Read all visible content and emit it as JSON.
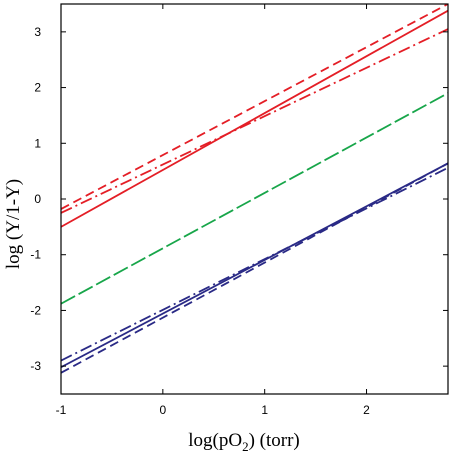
{
  "chart_data": {
    "type": "line",
    "title": "",
    "xlabel": {
      "prefix": "log(pO",
      "subscript": "2",
      "suffix": ") (torr)"
    },
    "ylabel": "log (Y/1-Y)",
    "xlim": [
      -1,
      2.8
    ],
    "ylim": [
      -3.5,
      3.5
    ],
    "x_ticks": [
      -1,
      0,
      1,
      2
    ],
    "x_tick_labels": [
      "-1",
      "0",
      "1",
      "2"
    ],
    "y_ticks": [
      -3,
      -2,
      -1,
      0,
      1,
      2,
      3
    ],
    "y_tick_labels": [
      "-3",
      "-2",
      "-1",
      "0",
      "1",
      "2",
      "3"
    ],
    "grid": false,
    "legend": "none",
    "series": [
      {
        "color": "#e41e26",
        "dash": "solid",
        "x": [
          -1,
          2.8
        ],
        "y": [
          -0.5,
          3.38
        ]
      },
      {
        "color": "#e41e26",
        "dash": "dashed",
        "x": [
          -1,
          2.8
        ],
        "y": [
          -0.18,
          3.5
        ]
      },
      {
        "color": "#e41e26",
        "dash": "dashdot",
        "x": [
          -1,
          2.8
        ],
        "y": [
          -0.25,
          3.05
        ]
      },
      {
        "color": "#18a64a",
        "dash": "longdash",
        "x": [
          -1,
          2.8
        ],
        "y": [
          -1.88,
          1.9
        ]
      },
      {
        "color": "#2a2a86",
        "dash": "solid",
        "x": [
          -1,
          2.8
        ],
        "y": [
          -3.02,
          0.64
        ]
      },
      {
        "color": "#2a2a86",
        "dash": "dashed",
        "x": [
          -1,
          2.8
        ],
        "y": [
          -3.12,
          0.64
        ]
      },
      {
        "color": "#2a2a86",
        "dash": "dashdot",
        "x": [
          -1,
          2.8
        ],
        "y": [
          -2.9,
          0.56
        ]
      }
    ]
  }
}
